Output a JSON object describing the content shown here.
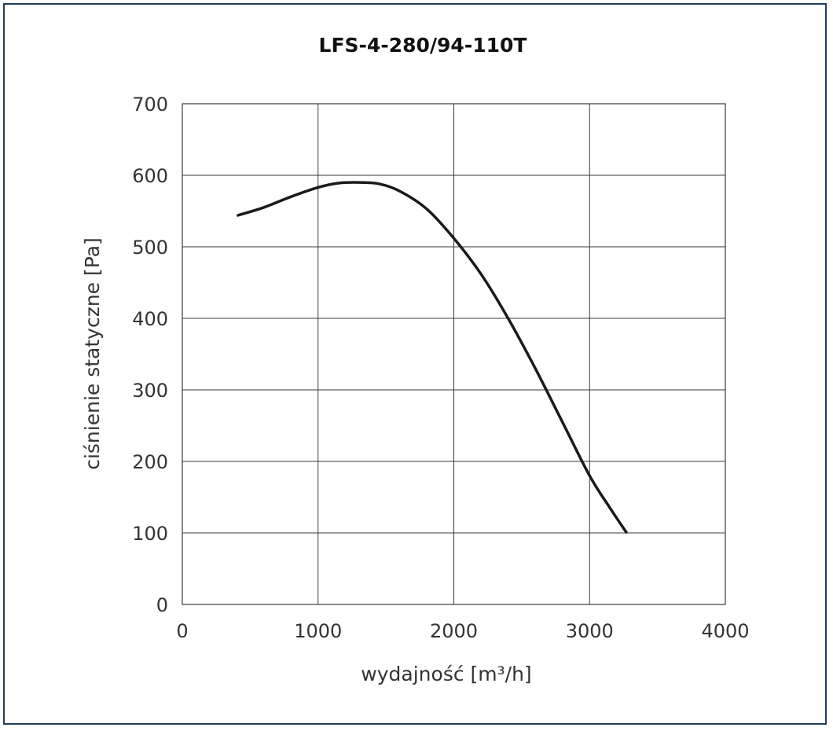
{
  "chart_data": {
    "type": "line",
    "title": "LFS-4-280/94-110T",
    "xlabel": "wydajność [m³/h]",
    "ylabel": "ciśnienie statyczne [Pa]",
    "xlim": [
      0,
      4000
    ],
    "ylim": [
      0,
      700
    ],
    "x_ticks": [
      0,
      1000,
      2000,
      3000,
      4000
    ],
    "y_ticks": [
      0,
      100,
      200,
      300,
      400,
      500,
      600,
      700
    ],
    "grid": true,
    "legend": "none",
    "series": [
      {
        "x": [
          410,
          600,
          800,
          1000,
          1150,
          1300,
          1450,
          1600,
          1800,
          2000,
          2200,
          2400,
          2600,
          2800,
          3000,
          3150,
          3270
        ],
        "y": [
          544,
          555,
          570,
          583,
          589,
          590,
          588,
          578,
          553,
          512,
          462,
          400,
          330,
          255,
          180,
          135,
          101
        ]
      }
    ],
    "colors": {
      "line": "#1a1a1a",
      "grid": "#3a3a3a",
      "frame": "#1f3d5c"
    }
  }
}
